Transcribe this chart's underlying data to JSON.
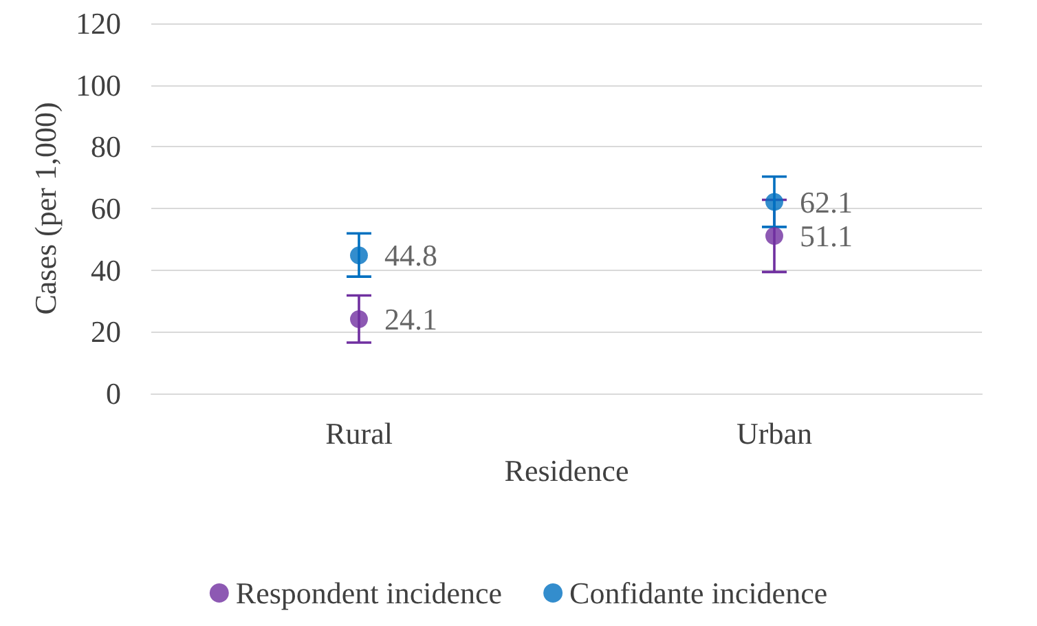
{
  "chart_data": {
    "type": "scatter",
    "xlabel": "Residence",
    "ylabel": "Cases (per 1,000)",
    "categories": [
      "Rural",
      "Urban"
    ],
    "series": [
      {
        "name": "Respondent incidence",
        "color": "#7030a0",
        "values": [
          24.1,
          51.1
        ],
        "errors": [
          [
            16.5,
            31.8
          ],
          [
            39.4,
            62.8
          ]
        ]
      },
      {
        "name": "Confidante incidence",
        "color": "#0070c0",
        "values": [
          44.8,
          62.1
        ],
        "errors": [
          [
            37.9,
            51.9
          ],
          [
            54,
            70.3
          ]
        ]
      }
    ],
    "ylim": [
      0,
      120
    ],
    "yticks": [
      0,
      20,
      40,
      60,
      80,
      100,
      120
    ],
    "grid": "y",
    "legend": "bottom",
    "marker": "circle",
    "data_labels": true
  }
}
